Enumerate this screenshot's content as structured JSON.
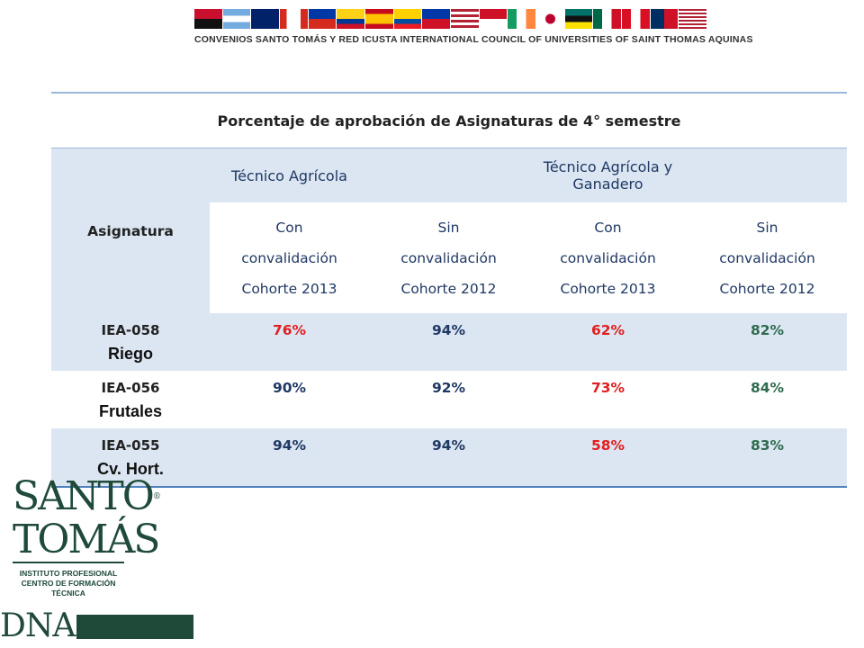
{
  "header": {
    "title": "CONVENIOS SANTO TOMÁS Y RED ICUSTA INTERNATIONAL COUNCIL OF UNIVERSITIES OF SAINT THOMAS AQUINAS",
    "flag_colors": [
      "#c8102e",
      "#74acdf",
      "#012169",
      "#d52b1e",
      "#0039a6",
      "#fcd116",
      "#f4c400",
      "#ce1126",
      "#0038a8",
      "#ffffff",
      "#ce1126",
      "#009a44",
      "#ff8200",
      "#ffffff",
      "#007a4d",
      "#ce1126",
      "#002d62",
      "#3c3b6e"
    ]
  },
  "table": {
    "title": "Porcentaje de aprobación de Asignaturas de 4° semestre",
    "subject_header": "Asignatura",
    "programs": [
      "Técnico Agrícola",
      "Técnico Agrícola y Ganadero"
    ],
    "subheaders": [
      {
        "line1": "Con",
        "line2": "convalidación",
        "line3": "Cohorte 2013"
      },
      {
        "line1": "Sin",
        "line2": "convalidación",
        "line3": "Cohorte 2012"
      },
      {
        "line1": "Con",
        "line2": "convalidación",
        "line3": "Cohorte 2013"
      },
      {
        "line1": "Sin",
        "line2": "convalidación",
        "line3": "Cohorte 2012"
      }
    ],
    "rows": [
      {
        "code": "IEA-058",
        "name": "Riego",
        "values": [
          "76%",
          "94%",
          "62%",
          "82%"
        ]
      },
      {
        "code": "IEA-056",
        "name": "Frutales",
        "values": [
          "90%",
          "92%",
          "73%",
          "84%"
        ]
      },
      {
        "code": "IEA-055",
        "name": "Cv. Hort.",
        "values": [
          "94%",
          "94%",
          "58%",
          "83%"
        ]
      }
    ]
  },
  "logo": {
    "line1": "SANTO",
    "line2": "TOMÁS",
    "reg": "®",
    "sub1": "INSTITUTO PROFESIONAL",
    "sub2": "CENTRO DE FORMACIÓN TÉCNICA",
    "dna": "DNA"
  }
}
